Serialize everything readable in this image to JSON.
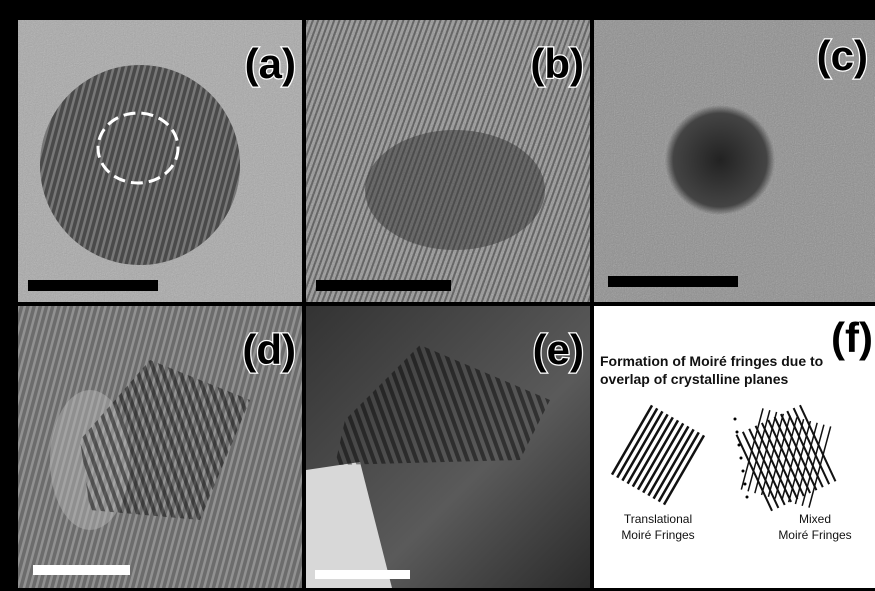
{
  "panels": [
    {
      "label": "(a)"
    },
    {
      "label": "(b)"
    },
    {
      "label": "(c)"
    },
    {
      "label": "(d)"
    },
    {
      "label": "(e)"
    },
    {
      "label": "(f)"
    }
  ],
  "panel_f": {
    "title_lines": [
      "Formation of Moiré fringes due to",
      "overlap of crystalline planes"
    ],
    "diagrams": [
      {
        "caption_lines": [
          "Translational",
          "Moiré Fringes"
        ]
      },
      {
        "caption_lines": [
          "Mixed",
          "Moiré Fringes"
        ]
      }
    ]
  }
}
